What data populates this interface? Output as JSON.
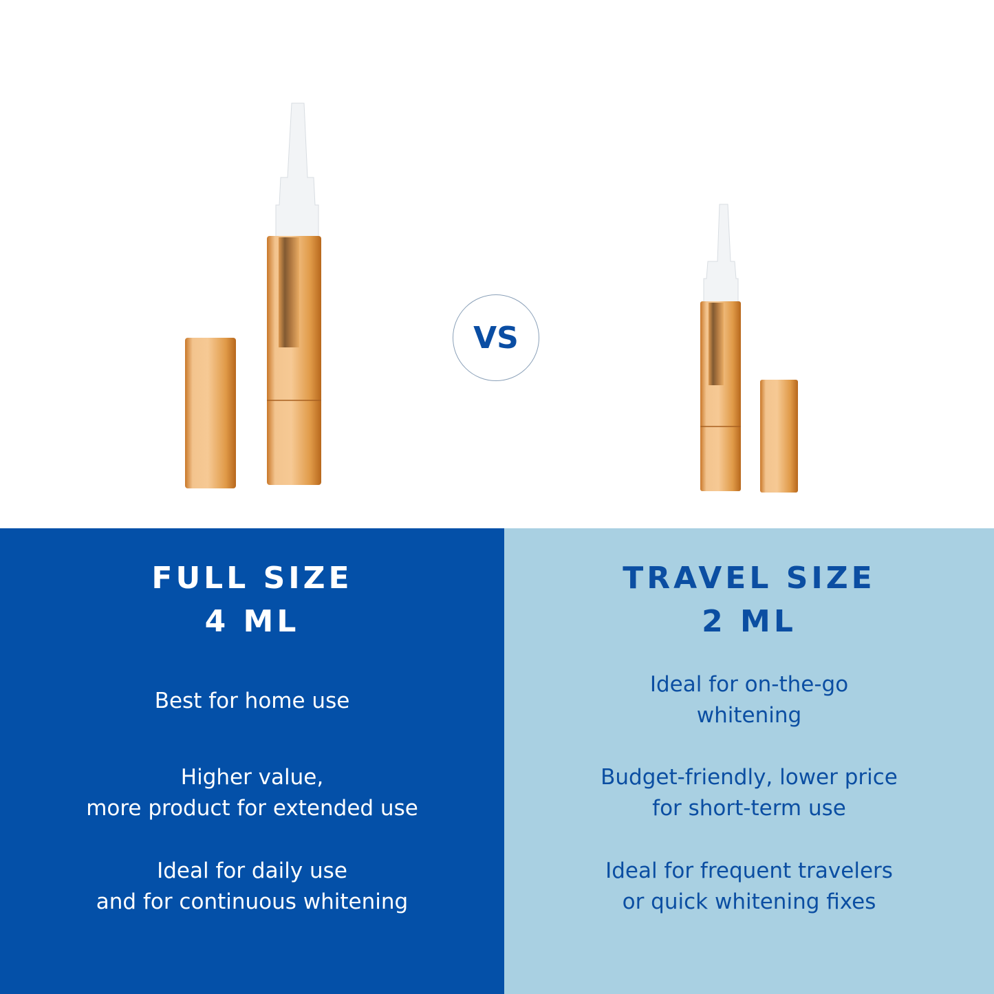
{
  "vs_label": "VS",
  "colors": {
    "full_panel": "#0450A8",
    "travel_panel": "#A9D0E2",
    "travel_text": "#0B4EA2",
    "pen_gold": "#E8A24A"
  },
  "full_size": {
    "title": "FULL SIZE",
    "volume": "4 ML",
    "features": [
      {
        "line1": "Best for home use",
        "line2": ""
      },
      {
        "line1": "Higher value,",
        "line2": "more product for extended use"
      },
      {
        "line1": "Ideal for daily use",
        "line2": "and for continuous whitening"
      }
    ]
  },
  "travel_size": {
    "title": "TRAVEL SIZE",
    "volume": "2 ML",
    "features": [
      {
        "line1": "Ideal for on-the-go",
        "line2": "whitening"
      },
      {
        "line1": "Budget-friendly, lower price",
        "line2": "for short-term use"
      },
      {
        "line1": "Ideal for frequent travelers",
        "line2": "or quick whitening fixes"
      }
    ]
  }
}
